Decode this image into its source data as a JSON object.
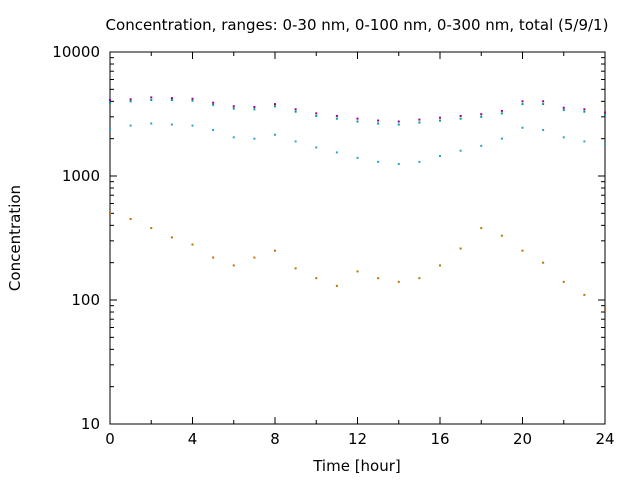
{
  "chart_data": {
    "type": "scatter",
    "title": "Concentration, ranges: 0-30 nm, 0-100 nm, 0-300 nm, total (5/9/1)",
    "xlabel": "Time [hour]",
    "ylabel": "Concentration",
    "xlim": [
      0,
      24
    ],
    "ylim": [
      10,
      10000
    ],
    "y_scale": "log",
    "x_ticks": [
      0,
      4,
      8,
      12,
      16,
      20,
      24
    ],
    "x_tick_labels": [
      "0",
      "4",
      "8",
      "12",
      "16",
      "20",
      "24"
    ],
    "y_ticks": [
      10,
      100,
      1000,
      10000
    ],
    "y_tick_labels": [
      "10",
      "100",
      "1000",
      "10000"
    ],
    "grid": false,
    "legend": "none",
    "series": [
      {
        "color": "#c07000",
        "x": [
          0,
          1,
          2,
          3,
          4,
          5,
          6,
          7,
          8,
          9,
          10,
          11,
          12,
          13,
          14,
          15,
          16,
          17,
          18,
          19,
          20,
          21,
          22,
          23,
          24
        ],
        "y": [
          500,
          450,
          380,
          320,
          280,
          220,
          190,
          220,
          250,
          180,
          150,
          130,
          170,
          150,
          140,
          150,
          190,
          260,
          380,
          330,
          250,
          200,
          140,
          110,
          85
        ]
      },
      {
        "color": "#30a0d0",
        "x": [
          0,
          1,
          2,
          3,
          4,
          5,
          6,
          7,
          8,
          9,
          10,
          11,
          12,
          13,
          14,
          15,
          16,
          17,
          18,
          19,
          20,
          21,
          22,
          23,
          24
        ],
        "y": [
          2400,
          2550,
          2650,
          2600,
          2550,
          2350,
          2050,
          2000,
          2150,
          1900,
          1700,
          1550,
          1400,
          1300,
          1250,
          1300,
          1450,
          1600,
          1750,
          2000,
          2450,
          2350,
          2050,
          1900,
          1800
        ]
      },
      {
        "color": "#00a080",
        "x": [
          0,
          1,
          2,
          3,
          4,
          5,
          6,
          7,
          8,
          9,
          10,
          11,
          12,
          13,
          14,
          15,
          16,
          17,
          18,
          19,
          20,
          21,
          22,
          23,
          24
        ],
        "y": [
          3900,
          4000,
          4100,
          4100,
          4050,
          3750,
          3500,
          3450,
          3650,
          3300,
          3050,
          2900,
          2750,
          2650,
          2600,
          2700,
          2800,
          2900,
          3000,
          3200,
          3800,
          3800,
          3400,
          3300,
          3100
        ]
      },
      {
        "color": "#9000a0",
        "x": [
          0,
          1,
          2,
          3,
          4,
          5,
          6,
          7,
          8,
          9,
          10,
          11,
          12,
          13,
          14,
          15,
          16,
          17,
          18,
          19,
          20,
          21,
          22,
          23,
          24
        ],
        "y": [
          4100,
          4150,
          4300,
          4250,
          4200,
          3900,
          3650,
          3600,
          3800,
          3450,
          3200,
          3050,
          2900,
          2800,
          2750,
          2850,
          2950,
          3050,
          3150,
          3350,
          4000,
          4000,
          3550,
          3450,
          3250
        ]
      }
    ]
  }
}
